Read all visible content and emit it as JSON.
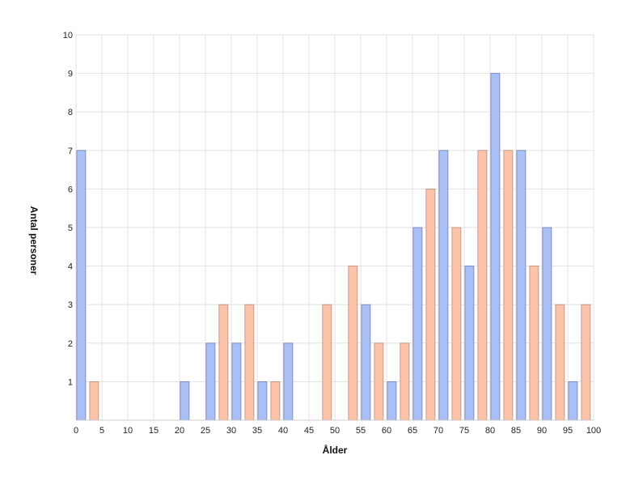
{
  "chart_data": {
    "type": "bar",
    "title": "",
    "xlabel": "Ålder",
    "ylabel": "Antal personer",
    "xlim": [
      0,
      100
    ],
    "ylim": [
      0,
      10
    ],
    "x_ticks": [
      0,
      5,
      10,
      15,
      20,
      25,
      30,
      35,
      40,
      45,
      50,
      55,
      60,
      65,
      70,
      75,
      80,
      85,
      90,
      95,
      100
    ],
    "y_ticks": [
      1,
      2,
      3,
      4,
      5,
      6,
      7,
      8,
      9,
      10
    ],
    "grid": true,
    "legend": "none",
    "colors": {
      "male": "#aabff5",
      "female": "#fcc3ab",
      "grid": "#e2e2e2"
    },
    "series": [
      {
        "color": "#aabff5",
        "x": [
          1,
          21,
          26,
          31,
          36,
          41,
          56,
          61,
          66,
          71,
          76,
          81,
          86,
          91,
          96
        ],
        "values": [
          7,
          1,
          2,
          2,
          1,
          2,
          3,
          1,
          5,
          7,
          4,
          9,
          7,
          5,
          1
        ]
      },
      {
        "color": "#fcc3ab",
        "x": [
          3.5,
          28.5,
          33.5,
          38.5,
          48.5,
          53.5,
          58.5,
          63.5,
          68.5,
          73.5,
          78.5,
          83.5,
          88.5,
          93.5,
          98.5
        ],
        "values": [
          1,
          3,
          3,
          1,
          3,
          4,
          2,
          2,
          6,
          5,
          7,
          7,
          4,
          3,
          3
        ]
      }
    ]
  }
}
